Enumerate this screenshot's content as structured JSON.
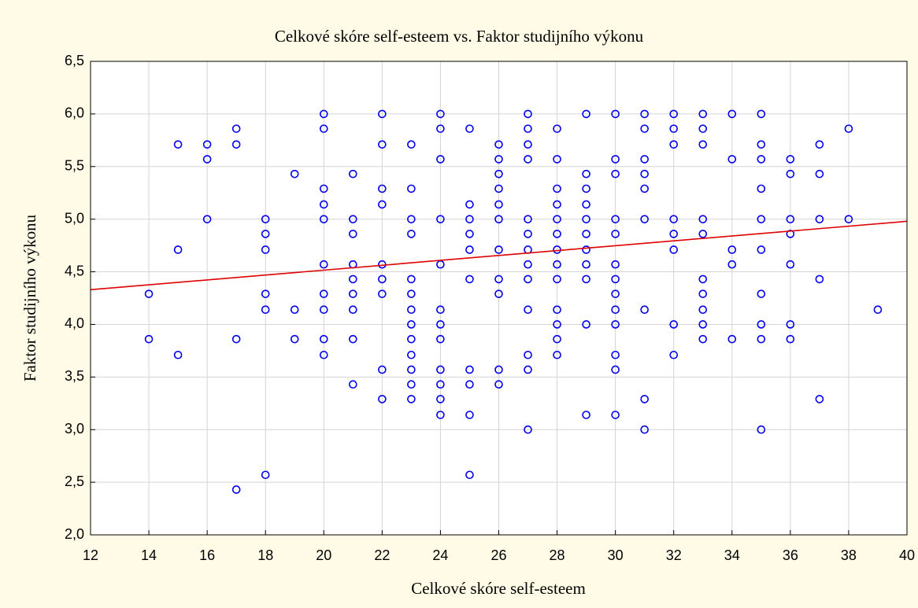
{
  "chart_data": {
    "type": "scatter",
    "title": "Celkové skóre self-esteem vs. Faktor studijního výkonu",
    "x_label": "Celkové skóre self-esteem",
    "y_label": "Faktor studijního výkonu",
    "color": "#0000ee",
    "grid": true,
    "xlim": [
      12,
      40
    ],
    "ylim": [
      2.0,
      6.5
    ],
    "xticks": [
      12,
      14,
      16,
      18,
      20,
      22,
      24,
      26,
      28,
      30,
      32,
      34,
      36,
      38,
      40
    ],
    "yticks": [
      {
        "value": 2.0,
        "label": "2,0"
      },
      {
        "value": 2.5,
        "label": "2,5"
      },
      {
        "value": 3.0,
        "label": "3,0"
      },
      {
        "value": 3.5,
        "label": "3,5"
      },
      {
        "value": 4.0,
        "label": "4,0"
      },
      {
        "value": 4.5,
        "label": "4,5"
      },
      {
        "value": 5.0,
        "label": "5,0"
      },
      {
        "value": 5.5,
        "label": "5,5"
      },
      {
        "value": 6.0,
        "label": "6,0"
      },
      {
        "value": 6.5,
        "label": "6,5"
      }
    ],
    "x": [
      14,
      14,
      15,
      15,
      15,
      16,
      16,
      16,
      17,
      17,
      17,
      17,
      18,
      18,
      18,
      18,
      18,
      18,
      19,
      19,
      19,
      20,
      20,
      20,
      20,
      20,
      20,
      20,
      20,
      20,
      20,
      21,
      21,
      21,
      21,
      21,
      21,
      21,
      21,
      21,
      22,
      22,
      22,
      22,
      22,
      22,
      22,
      22,
      22,
      23,
      23,
      23,
      23,
      23,
      23,
      23,
      23,
      23,
      23,
      23,
      23,
      23,
      24,
      24,
      24,
      24,
      24,
      24,
      24,
      24,
      24,
      24,
      24,
      24,
      25,
      25,
      25,
      25,
      25,
      25,
      25,
      25,
      25,
      25,
      26,
      26,
      26,
      26,
      26,
      26,
      26,
      26,
      26,
      26,
      26,
      27,
      27,
      27,
      27,
      27,
      27,
      27,
      27,
      27,
      27,
      27,
      27,
      27,
      28,
      28,
      28,
      28,
      28,
      28,
      28,
      28,
      28,
      28,
      28,
      28,
      28,
      29,
      29,
      29,
      29,
      29,
      29,
      29,
      29,
      29,
      29,
      29,
      30,
      30,
      30,
      30,
      30,
      30,
      30,
      30,
      30,
      30,
      30,
      30,
      30,
      31,
      31,
      31,
      31,
      31,
      31,
      31,
      31,
      31,
      32,
      32,
      32,
      32,
      32,
      32,
      32,
      32,
      33,
      33,
      33,
      33,
      33,
      33,
      33,
      33,
      33,
      33,
      34,
      34,
      34,
      34,
      34,
      35,
      35,
      35,
      35,
      35,
      35,
      35,
      35,
      35,
      35,
      36,
      36,
      36,
      36,
      36,
      36,
      36,
      37,
      37,
      37,
      37,
      37,
      38,
      38,
      39
    ],
    "y": [
      4.29,
      3.86,
      5.71,
      4.71,
      3.71,
      5.71,
      5.57,
      5.0,
      5.86,
      5.71,
      3.86,
      2.43,
      5.0,
      4.86,
      4.71,
      4.29,
      4.14,
      2.57,
      5.43,
      4.14,
      3.86,
      6.0,
      5.86,
      5.29,
      5.14,
      5.0,
      4.57,
      4.29,
      4.14,
      3.86,
      3.71,
      5.43,
      5.0,
      4.86,
      4.57,
      4.43,
      4.29,
      4.14,
      3.86,
      3.43,
      6.0,
      5.71,
      5.29,
      5.14,
      4.57,
      4.43,
      4.29,
      3.57,
      3.29,
      5.71,
      5.29,
      5.0,
      4.86,
      4.43,
      4.29,
      4.14,
      4.0,
      3.86,
      3.71,
      3.57,
      3.43,
      3.29,
      6.0,
      5.86,
      5.57,
      5.0,
      4.57,
      4.14,
      4.0,
      3.86,
      3.57,
      3.43,
      3.29,
      3.14,
      5.86,
      5.14,
      5.0,
      4.86,
      4.71,
      4.43,
      3.57,
      3.43,
      3.14,
      2.57,
      5.71,
      5.57,
      5.43,
      5.29,
      5.14,
      5.0,
      4.71,
      4.43,
      4.29,
      3.57,
      3.43,
      6.0,
      5.86,
      5.71,
      5.57,
      5.0,
      4.86,
      4.71,
      4.57,
      4.43,
      4.14,
      3.71,
      3.57,
      3.0,
      5.86,
      5.57,
      5.29,
      5.14,
      5.0,
      4.86,
      4.71,
      4.57,
      4.43,
      4.14,
      4.0,
      3.86,
      3.71,
      6.0,
      5.43,
      5.29,
      5.14,
      5.0,
      4.86,
      4.71,
      4.57,
      4.43,
      4.0,
      3.14,
      6.0,
      5.57,
      5.43,
      5.0,
      4.86,
      4.57,
      4.43,
      4.29,
      4.14,
      4.0,
      3.71,
      3.57,
      3.14,
      6.0,
      5.86,
      5.57,
      5.43,
      5.29,
      5.0,
      4.14,
      3.29,
      3.0,
      6.0,
      5.86,
      5.71,
      5.0,
      4.86,
      4.71,
      4.0,
      3.71,
      6.0,
      5.86,
      5.71,
      5.0,
      4.86,
      4.43,
      4.29,
      4.14,
      4.0,
      3.86,
      6.0,
      5.57,
      4.71,
      4.57,
      3.86,
      6.0,
      5.71,
      5.57,
      5.29,
      5.0,
      4.71,
      4.29,
      4.0,
      3.86,
      3.0,
      5.57,
      5.43,
      5.0,
      4.86,
      4.57,
      4.0,
      3.86,
      5.71,
      5.43,
      5.0,
      4.43,
      3.29,
      5.86,
      5.0,
      4.14
    ],
    "trend": {
      "x": [
        12,
        40
      ],
      "y": [
        4.33,
        4.98
      ],
      "color": "#e00000"
    }
  }
}
